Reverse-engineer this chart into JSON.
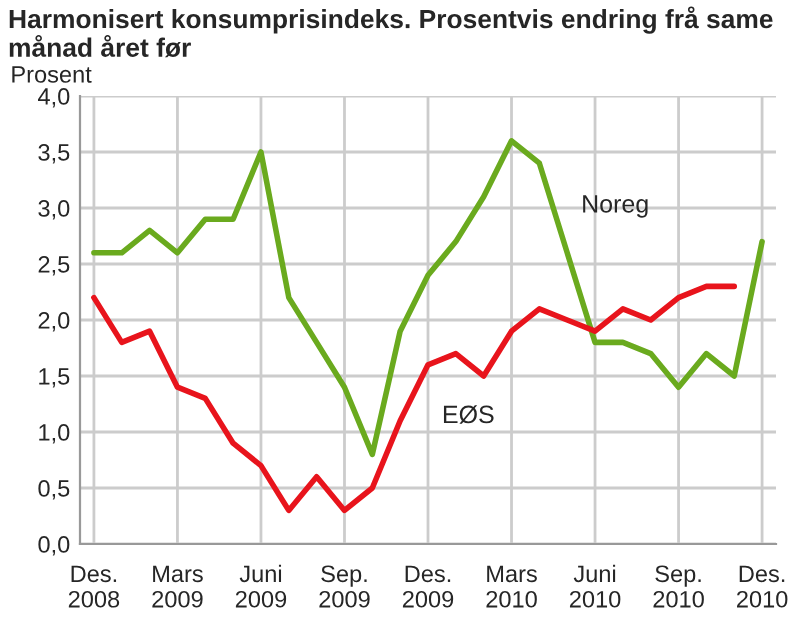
{
  "chart_data": {
    "type": "line",
    "title": "Harmonisert konsumprisindeks. Prosentvis endring frå same månad året før",
    "ylabel": "Prosent",
    "categories": [
      "Des.\n2008",
      null,
      null,
      "Mars\n2009",
      null,
      null,
      "Juni\n2009",
      null,
      null,
      "Sep.\n2009",
      null,
      null,
      "Des.\n2009",
      null,
      null,
      "Mars\n2010",
      null,
      null,
      "Juni\n2010",
      null,
      null,
      "Sep.\n2010",
      null,
      null,
      "Des.\n2010"
    ],
    "series": [
      {
        "name": "Noreg",
        "color": "#6aaa1e",
        "values": [
          2.6,
          2.6,
          2.8,
          2.6,
          2.9,
          2.9,
          3.5,
          2.2,
          1.8,
          1.4,
          0.8,
          1.9,
          2.4,
          2.7,
          3.1,
          3.6,
          3.4,
          2.6,
          1.8,
          1.8,
          1.7,
          1.4,
          1.7,
          1.5,
          2.7
        ]
      },
      {
        "name": "EØS",
        "color": "#e8141c",
        "values": [
          2.2,
          1.8,
          1.9,
          1.4,
          1.3,
          0.9,
          0.7,
          0.3,
          0.6,
          0.3,
          0.5,
          1.1,
          1.6,
          1.7,
          1.5,
          1.9,
          2.1,
          2.0,
          1.9,
          2.1,
          2.0,
          2.2,
          2.3,
          2.3,
          null
        ]
      }
    ],
    "ylim": [
      0,
      4
    ],
    "yticks": [
      {
        "value": 0,
        "label": "0,0"
      },
      {
        "value": 0.5,
        "label": "0,5"
      },
      {
        "value": 1,
        "label": "1,0"
      },
      {
        "value": 1.5,
        "label": "1,5"
      },
      {
        "value": 2,
        "label": "2,0"
      },
      {
        "value": 2.5,
        "label": "2,5"
      },
      {
        "value": 3,
        "label": "3,0"
      },
      {
        "value": 3.5,
        "label": "3,5"
      },
      {
        "value": 4,
        "label": "4,0"
      }
    ],
    "grid": true,
    "legend": false,
    "marker": "none",
    "line_style": "solid"
  }
}
